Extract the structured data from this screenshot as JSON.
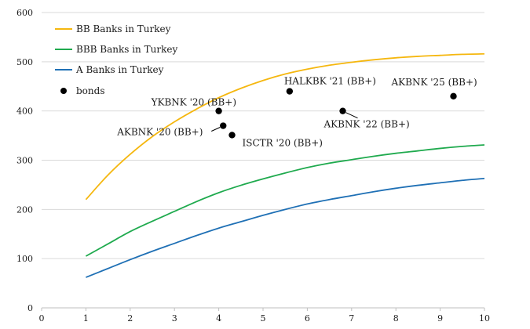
{
  "chart_data": {
    "type": "line",
    "title": "",
    "xlabel": "",
    "ylabel": "",
    "xlim": [
      0,
      10
    ],
    "ylim": [
      0,
      600
    ],
    "x_ticks": [
      "0",
      "1",
      "2",
      "3",
      "4",
      "5",
      "6",
      "7",
      "8",
      "9",
      "10"
    ],
    "y_ticks": [
      "0",
      "100",
      "200",
      "300",
      "400",
      "500",
      "600"
    ],
    "grid": "horizontal",
    "legend_position": "top-left",
    "series": [
      {
        "name": "BB Banks in Turkey",
        "color": "#f5b70f",
        "x": [
          1,
          1.5,
          2,
          2.5,
          3,
          3.5,
          4,
          4.5,
          5,
          5.5,
          6,
          6.5,
          7,
          7.5,
          8,
          8.5,
          9,
          9.5,
          10
        ],
        "y": [
          220,
          270,
          312,
          348,
          378,
          404,
          427,
          446,
          462,
          475,
          485,
          493,
          499,
          504,
          508,
          511,
          513,
          515,
          516
        ]
      },
      {
        "name": "BBB Banks in Turkey",
        "color": "#1faa4e",
        "x": [
          1,
          1.5,
          2,
          2.5,
          3,
          3.5,
          4,
          4.5,
          5,
          5.5,
          6,
          6.5,
          7,
          7.5,
          8,
          8.5,
          9,
          9.5,
          10
        ],
        "y": [
          105,
          130,
          155,
          176,
          196,
          216,
          234,
          249,
          262,
          274,
          285,
          294,
          301,
          308,
          314,
          319,
          324,
          328,
          331
        ]
      },
      {
        "name": "A Banks in Turkey",
        "color": "#1f70b5",
        "x": [
          1,
          1.5,
          2,
          2.5,
          3,
          3.5,
          4,
          4.5,
          5,
          5.5,
          6,
          6.5,
          7,
          7.5,
          8,
          8.5,
          9,
          9.5,
          10
        ],
        "y": [
          62,
          80,
          98,
          115,
          131,
          147,
          162,
          175,
          188,
          200,
          211,
          220,
          228,
          236,
          243,
          249,
          254,
          259,
          263
        ]
      }
    ],
    "scatter": {
      "name": "bonds",
      "color": "#000000",
      "points": [
        {
          "x": 4.0,
          "y": 400,
          "label": "YKBNK '20 (BB+)"
        },
        {
          "x": 4.1,
          "y": 370,
          "label": "AKBNK '20 (BB+)"
        },
        {
          "x": 4.3,
          "y": 351,
          "label": "ISCTR '20 (BB+)"
        },
        {
          "x": 5.6,
          "y": 440,
          "label": "HALKBK '21 (BB+)"
        },
        {
          "x": 6.8,
          "y": 400,
          "label": "AKBNK '22 (BB+)"
        },
        {
          "x": 9.3,
          "y": 430,
          "label": "AKBNK '25 (BB+)"
        }
      ]
    }
  }
}
